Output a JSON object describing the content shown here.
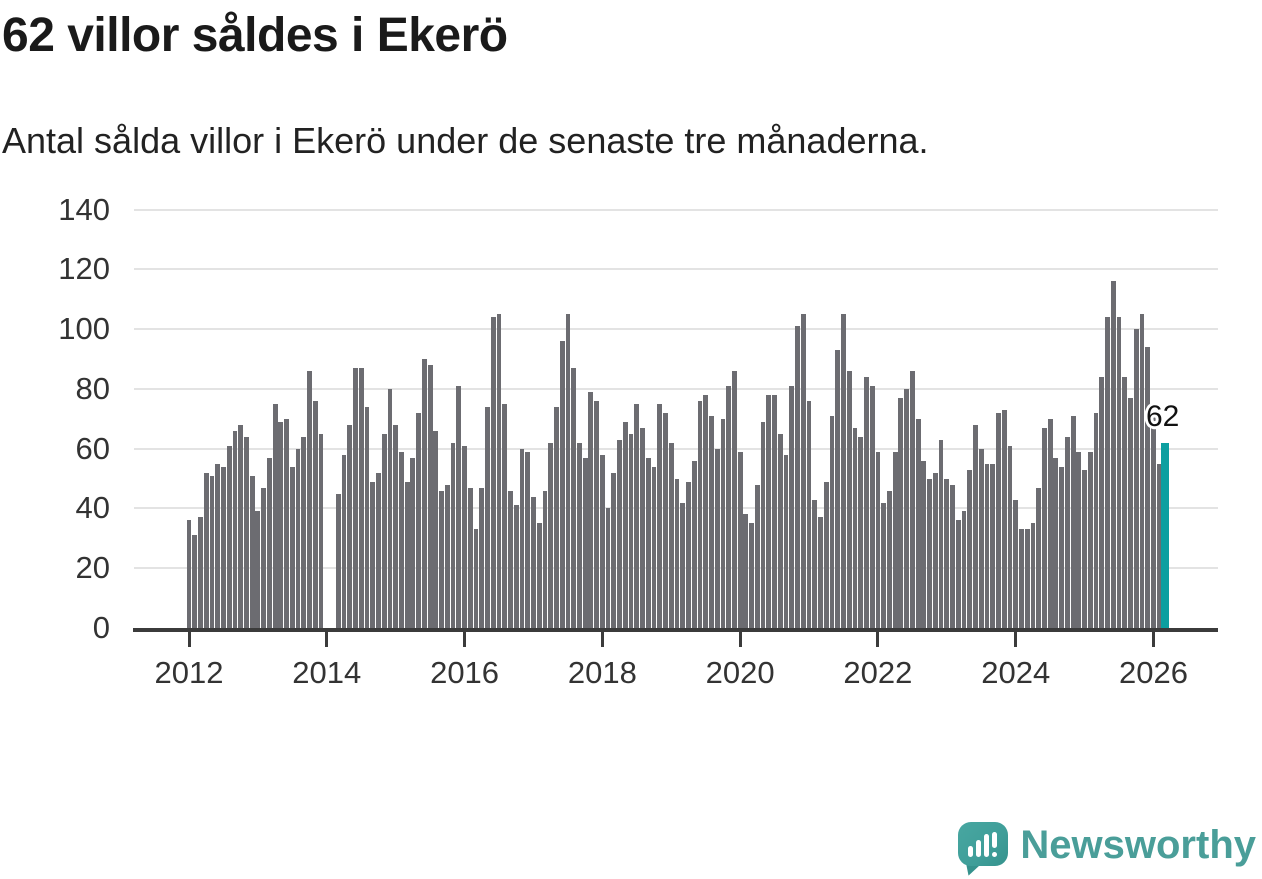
{
  "header": {
    "title": "62 villor såldes i Ekerö",
    "subtitle": "Antal sålda villor i Ekerö under de senaste tre månaderna."
  },
  "chart_data": {
    "type": "bar",
    "title": "62 villor såldes i Ekerö",
    "subtitle": "Antal sålda villor i Ekerö under de senaste tre månaderna.",
    "xlabel": "",
    "ylabel": "",
    "ylim": [
      0,
      140
    ],
    "yticks": [
      0,
      20,
      40,
      60,
      80,
      100,
      120,
      140
    ],
    "xticks": [
      2012,
      2014,
      2016,
      2018,
      2020,
      2022,
      2024,
      2026
    ],
    "grid": true,
    "frequency": "monthly-rolling-3-month-sum",
    "start_period": "2012-01",
    "bar_color": "#6c6c71",
    "highlight_color": "#0d9fa0",
    "highlight_label": "62",
    "highlight_value": 62,
    "values": [
      36,
      31,
      37,
      52,
      51,
      55,
      54,
      61,
      66,
      68,
      64,
      51,
      39,
      47,
      57,
      75,
      69,
      70,
      54,
      60,
      64,
      86,
      76,
      65,
      null,
      null,
      45,
      58,
      68,
      87,
      87,
      74,
      49,
      52,
      65,
      80,
      68,
      59,
      49,
      57,
      72,
      90,
      88,
      66,
      46,
      48,
      62,
      81,
      61,
      47,
      33,
      47,
      74,
      104,
      105,
      75,
      46,
      41,
      60,
      59,
      44,
      35,
      46,
      62,
      74,
      96,
      105,
      87,
      62,
      57,
      79,
      76,
      58,
      40,
      52,
      63,
      69,
      65,
      75,
      67,
      57,
      54,
      75,
      72,
      62,
      50,
      42,
      49,
      56,
      76,
      78,
      71,
      60,
      70,
      81,
      86,
      59,
      38,
      35,
      48,
      69,
      78,
      78,
      65,
      58,
      81,
      101,
      105,
      76,
      43,
      37,
      49,
      71,
      93,
      105,
      86,
      67,
      64,
      84,
      81,
      59,
      42,
      46,
      59,
      77,
      80,
      86,
      70,
      56,
      50,
      52,
      63,
      50,
      48,
      36,
      39,
      53,
      68,
      60,
      55,
      55,
      72,
      73,
      61,
      43,
      33,
      33,
      35,
      47,
      67,
      70,
      57,
      54,
      64,
      71,
      59,
      53,
      59,
      72,
      84,
      104,
      116,
      104,
      84,
      77,
      100,
      105,
      94,
      74,
      55,
      62
    ],
    "highlight_index": 170,
    "legend": "none"
  },
  "footer": {
    "brand": "Newsworthy",
    "brand_color": "#4a9e99"
  }
}
